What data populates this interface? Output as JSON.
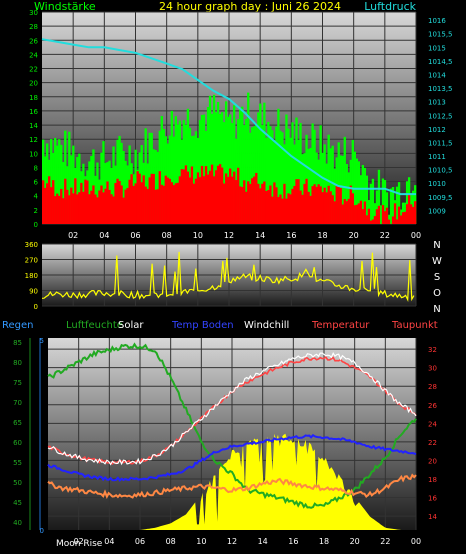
{
  "title": "24 hour graph day : Juni 26 2024",
  "colors": {
    "wind_gust": "#00ff00",
    "wind_avg": "#ff0000",
    "pressure": "#22dddd",
    "direction": "#ffff00",
    "temperature": "#ff4444",
    "windchill": "#ffffff",
    "dewpoint": "#ff8844",
    "humidity": "#22aa22",
    "temp_ground": "#2222ff",
    "solar": "#ffff00",
    "rain": "#3399ff",
    "grid": "#333333"
  },
  "chart_data": [
    {
      "type": "bar",
      "name": "wind_pressure",
      "left_label": "Windstärke",
      "right_label": "Luftdruck",
      "x_ticks": [
        "02",
        "04",
        "06",
        "08",
        "10",
        "12",
        "14",
        "16",
        "18",
        "20",
        "22",
        "00"
      ],
      "left_ticks": [
        "0",
        "2",
        "4",
        "6",
        "8",
        "10",
        "12",
        "14",
        "16",
        "18",
        "20",
        "22",
        "24",
        "26",
        "28",
        "30"
      ],
      "right_ticks": [
        "1009",
        "1009,5",
        "1010",
        "1010,5",
        "1011",
        "1011,5",
        "1012",
        "1012,5",
        "1013",
        "1013,5",
        "1014",
        "1014,5",
        "1015",
        "1015,5",
        "1016"
      ],
      "ylim_left": [
        0,
        30
      ],
      "ylim_right": [
        1008.5,
        1016.3
      ],
      "hours": [
        0,
        1,
        2,
        3,
        4,
        5,
        6,
        7,
        8,
        9,
        10,
        11,
        12,
        13,
        14,
        15,
        16,
        17,
        18,
        19,
        20,
        21,
        22,
        23,
        24
      ],
      "wind_gust": [
        12,
        11,
        10,
        9,
        9,
        10,
        10,
        12,
        14,
        15,
        15,
        16,
        14,
        16,
        15,
        14,
        13,
        12,
        11,
        10,
        10,
        6,
        4,
        5,
        8
      ],
      "wind_avg": [
        6,
        5,
        5,
        5,
        5,
        5,
        6,
        6,
        7,
        7,
        7,
        7,
        7,
        6,
        6,
        5,
        5,
        5,
        5,
        4,
        4,
        2,
        1,
        2,
        4
      ],
      "pressure": [
        1015.3,
        1015.2,
        1015.1,
        1015.0,
        1015.0,
        1014.9,
        1014.8,
        1014.6,
        1014.4,
        1014.2,
        1013.8,
        1013.4,
        1013.1,
        1012.6,
        1012.0,
        1011.5,
        1011.0,
        1010.6,
        1010.2,
        1009.9,
        1009.8,
        1009.8,
        1009.8,
        1009.6,
        1009.6
      ]
    },
    {
      "type": "scatter",
      "name": "wind_direction",
      "left_ticks": [
        "0",
        "90",
        "180",
        "270",
        "360"
      ],
      "compass": [
        "N",
        "W",
        "S",
        "O",
        "N"
      ],
      "ylim": [
        0,
        360
      ],
      "hours": [
        0,
        1,
        2,
        3,
        4,
        5,
        6,
        7,
        8,
        9,
        10,
        11,
        12,
        13,
        14,
        15,
        16,
        17,
        18,
        19,
        20,
        21,
        22,
        23,
        24
      ],
      "direction": [
        60,
        70,
        65,
        70,
        75,
        70,
        65,
        60,
        70,
        80,
        90,
        110,
        150,
        170,
        160,
        150,
        160,
        180,
        140,
        120,
        100,
        90,
        70,
        60,
        50
      ]
    },
    {
      "type": "line",
      "name": "temperature_humidity",
      "legend": [
        "Regen",
        "Luftfeuchte",
        "Solar",
        "Temp Boden",
        "Windchill",
        "Temperatur",
        "Taupunkt"
      ],
      "x_ticks": [
        "02",
        "04",
        "06",
        "08",
        "10",
        "12",
        "14",
        "16",
        "18",
        "20",
        "22",
        "00"
      ],
      "humidity_ticks": [
        "40",
        "45",
        "50",
        "55",
        "60",
        "65",
        "70",
        "75",
        "80",
        "85"
      ],
      "rain_ticks": [
        "0",
        "5"
      ],
      "temp_ticks": [
        "14",
        "16",
        "18",
        "20",
        "22",
        "24",
        "26",
        "28",
        "30",
        "32"
      ],
      "ylim_humidity": [
        38,
        86
      ],
      "ylim_temp": [
        12.5,
        33.2
      ],
      "moon_label": "Moon Rise",
      "hours": [
        0,
        1,
        2,
        3,
        4,
        5,
        6,
        7,
        8,
        9,
        10,
        11,
        12,
        13,
        14,
        15,
        16,
        17,
        18,
        19,
        20,
        21,
        22,
        23,
        24
      ],
      "temperature": [
        21.5,
        20.8,
        20.3,
        20.0,
        19.8,
        19.8,
        19.9,
        20.5,
        21.5,
        23.0,
        24.5,
        26.0,
        27.5,
        28.5,
        29.3,
        30.0,
        30.6,
        31.0,
        31.1,
        30.8,
        30.0,
        29.0,
        27.5,
        26.0,
        25.0
      ],
      "windchill": [
        21.5,
        20.8,
        20.3,
        20.0,
        19.8,
        19.8,
        19.9,
        20.5,
        21.5,
        23.0,
        24.5,
        26.0,
        27.5,
        28.8,
        29.6,
        30.3,
        31.0,
        31.3,
        31.5,
        31.2,
        30.5,
        29.2,
        27.5,
        26.0,
        25.0
      ],
      "dewpoint": [
        17.5,
        17.0,
        16.8,
        16.5,
        16.3,
        16.2,
        16.3,
        16.5,
        16.8,
        17.0,
        17.2,
        17.0,
        16.8,
        17.0,
        17.5,
        17.8,
        17.5,
        17.2,
        17.0,
        16.8,
        16.5,
        16.3,
        17.0,
        18.0,
        18.3
      ],
      "temp_ground": [
        19.5,
        19.0,
        18.5,
        18.2,
        18.0,
        18.0,
        18.0,
        18.2,
        18.5,
        19.0,
        20.0,
        21.0,
        21.5,
        21.8,
        22.0,
        22.3,
        22.5,
        22.6,
        22.5,
        22.3,
        22.0,
        21.5,
        21.2,
        21.0,
        20.8
      ],
      "humidity": [
        76,
        78,
        80,
        82,
        83,
        84,
        84,
        83,
        76,
        68,
        60,
        55,
        52,
        48,
        47,
        46,
        45,
        44,
        44,
        46,
        48,
        52,
        56,
        62,
        66
      ],
      "solar_rel": [
        0,
        0,
        0,
        0,
        0,
        0,
        0,
        0.02,
        0.06,
        0.14,
        0.32,
        0.55,
        0.72,
        0.82,
        0.85,
        0.87,
        0.86,
        0.8,
        0.68,
        0.5,
        0.3,
        0.12,
        0.02,
        0,
        0
      ],
      "rain": [
        0,
        0,
        0,
        0,
        0,
        0,
        0,
        0,
        0,
        0,
        0,
        0,
        0,
        0,
        0,
        0,
        0,
        0,
        0,
        0,
        0,
        0,
        0,
        0,
        0
      ]
    }
  ]
}
